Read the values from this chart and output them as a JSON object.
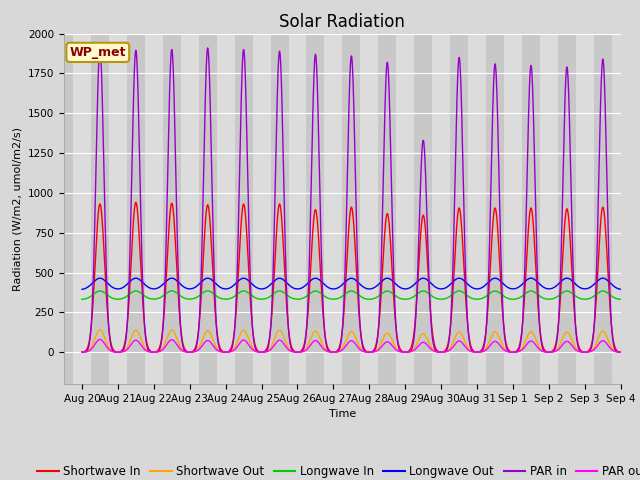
{
  "title": "Solar Radiation",
  "xlabel": "Time",
  "ylabel": "Radiation (W/m2, umol/m2/s)",
  "ylim": [
    -200,
    2000
  ],
  "x_tick_labels": [
    "Aug 20",
    "Aug 21",
    "Aug 22",
    "Aug 23",
    "Aug 24",
    "Aug 25",
    "Aug 26",
    "Aug 27",
    "Aug 28",
    "Aug 29",
    "Aug 30",
    "Aug 31",
    "Sep 1",
    "Sep 2",
    "Sep 3",
    "Sep 4"
  ],
  "annotation_text": "WP_met",
  "annotation_color": "#8B0000",
  "annotation_bg": "#FFFACD",
  "annotation_border": "#B8960C",
  "band_day_color": "#DCDCDC",
  "band_night_color": "#C8C8C8",
  "grid_color": "#FFFFFF",
  "lines": {
    "shortwave_in": {
      "color": "#FF0000",
      "label": "Shortwave In",
      "lw": 1.0
    },
    "shortwave_out": {
      "color": "#FFA500",
      "label": "Shortwave Out",
      "lw": 1.0
    },
    "longwave_in": {
      "color": "#00CC00",
      "label": "Longwave In",
      "lw": 1.0
    },
    "longwave_out": {
      "color": "#0000FF",
      "label": "Longwave Out",
      "lw": 1.0
    },
    "par_in": {
      "color": "#9900CC",
      "label": "PAR in",
      "lw": 1.0
    },
    "par_out": {
      "color": "#FF00FF",
      "label": "PAR out",
      "lw": 1.0
    }
  },
  "n_days": 15,
  "pts_per_day": 480,
  "title_fontsize": 12,
  "label_fontsize": 8,
  "tick_fontsize": 7.5,
  "legend_fontsize": 8.5
}
